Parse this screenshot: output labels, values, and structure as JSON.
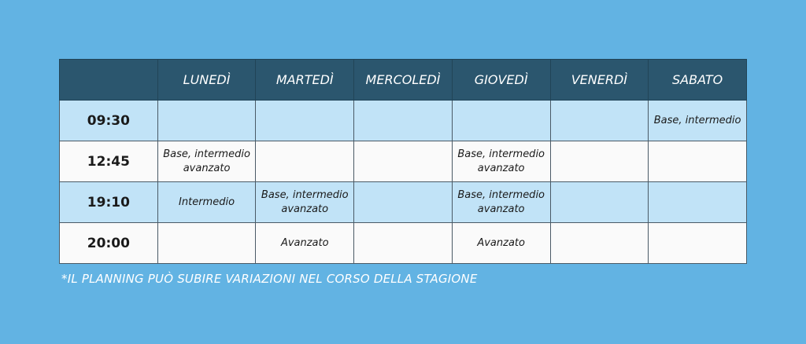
{
  "schedule": {
    "headers": [
      "",
      "LUNEDÌ",
      "MARTEDÌ",
      "MERCOLEDÌ",
      "GIOVEDÌ",
      "VENERDÌ",
      "SABATO"
    ],
    "rows": [
      {
        "time": "09:30",
        "cells": [
          "",
          "",
          "",
          "",
          "",
          "Base, intermedio"
        ]
      },
      {
        "time": "12:45",
        "cells": [
          "Base, intermedio\navanzato",
          "",
          "",
          "Base, intermedio\navanzato",
          "",
          ""
        ]
      },
      {
        "time": "19:10",
        "cells": [
          "Intermedio",
          "Base, intermedio\navanzato",
          "",
          "Base, intermedio\navanzato",
          "",
          ""
        ]
      },
      {
        "time": "20:00",
        "cells": [
          "",
          "Avanzato",
          "",
          "Avanzato",
          "",
          ""
        ]
      }
    ]
  },
  "footnote": "*IL PLANNING PUÒ SUBIRE VARIAZIONI NEL CORSO DELLA STAGIONE",
  "colors": {
    "background": "#62b3e3",
    "header": "#2b566e",
    "row_blue": "#c1e3f7",
    "row_white": "#fafafa"
  }
}
